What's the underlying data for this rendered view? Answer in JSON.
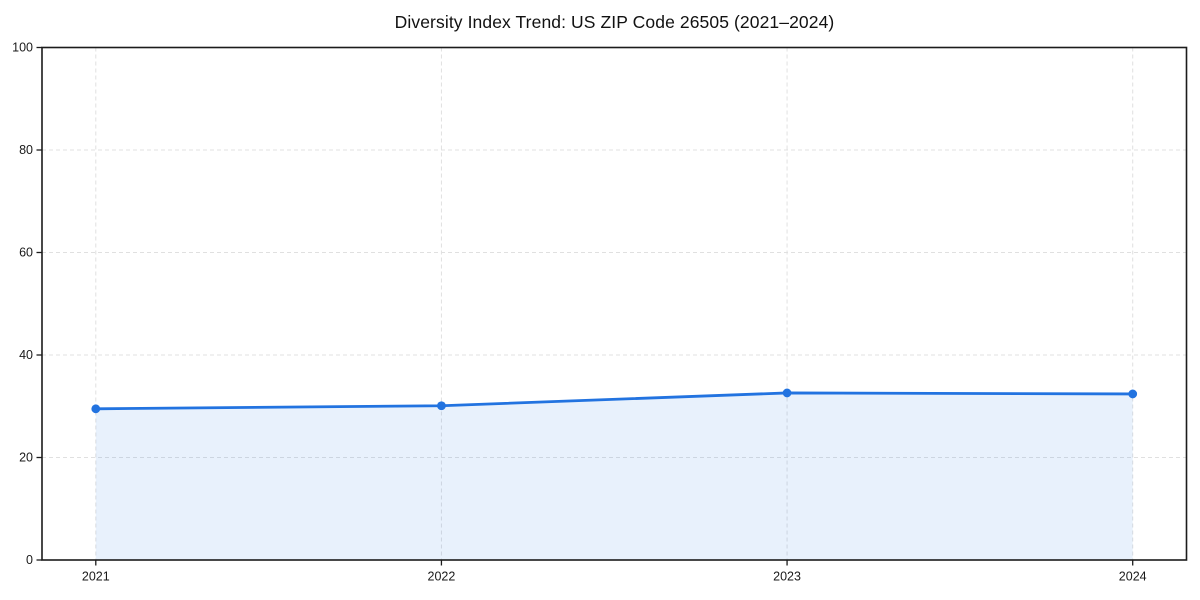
{
  "page": {
    "background_color": "#ffffff"
  },
  "chart_data": {
    "type": "area",
    "title": "Diversity Index Trend: US ZIP Code 26505 (2021–2024)",
    "categories": [
      "2021",
      "2022",
      "2023",
      "2024"
    ],
    "series": [
      {
        "name": "Diversity Index",
        "values": [
          29.5,
          30.1,
          32.6,
          32.4
        ]
      }
    ],
    "xlabel": "",
    "ylabel": "",
    "ylim": [
      0,
      100
    ],
    "yticks": [
      0,
      20,
      40,
      60,
      80,
      100
    ],
    "grid": true,
    "grid_style": "dashed",
    "legend": "none",
    "marker": "circle",
    "colors": {
      "line": "#2273e0",
      "marker": "#2273e0",
      "fill": "rgba(34,115,224,0.10)",
      "grid": "#e0e0e0",
      "spine": "#1c1c1c",
      "tick": "#1c1c1c",
      "tick_label": "#1a1a1a",
      "title": "#111111"
    }
  }
}
